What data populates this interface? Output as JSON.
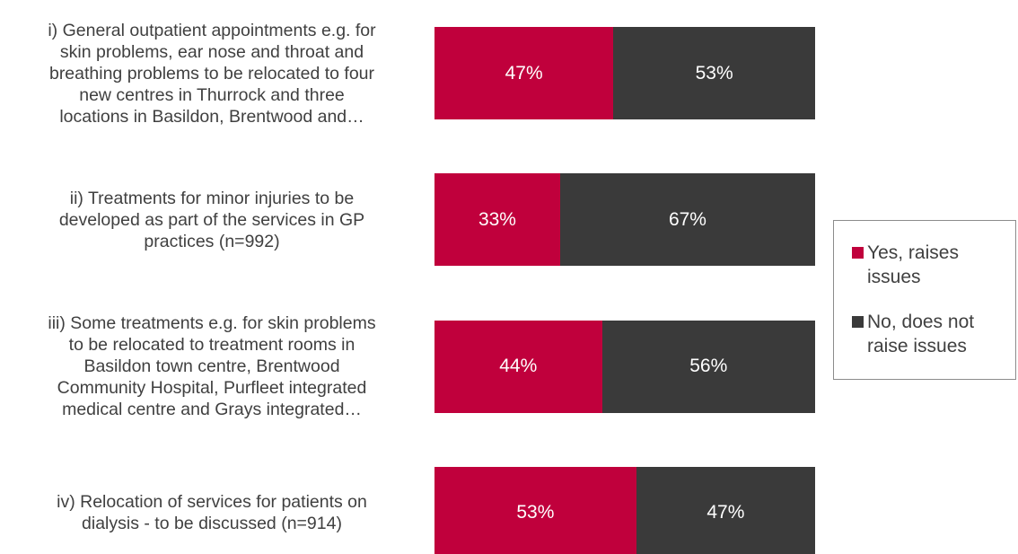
{
  "chart_data": {
    "type": "stacked_bar_horizontal",
    "categories": [
      "i) General outpatient appointments e.g. for\nskin problems, ear nose and throat and\nbreathing problems to be relocated to four\nnew centres in Thurrock and three\nlocations in Basildon, Brentwood and…",
      "ii) Treatments for minor injuries to be\ndeveloped as part of the services in GP\npractices (n=992)",
      "iii) Some treatments e.g. for skin problems\nto be relocated to treatment rooms in\nBasildon town centre, Brentwood\nCommunity Hospital, Purfleet integrated\nmedical centre and Grays integrated…",
      "iv) Relocation of services for patients on\ndialysis - to be discussed (n=914)"
    ],
    "series": [
      {
        "name": "Yes, raises issues",
        "color": "#c0003c",
        "values": [
          47,
          33,
          44,
          53
        ],
        "value_labels": [
          "47%",
          "33%",
          "44%",
          "53%"
        ]
      },
      {
        "name": "No, does not raise issues",
        "color": "#3a3a3a",
        "values": [
          53,
          67,
          56,
          47
        ],
        "value_labels": [
          "53%",
          "67%",
          "56%",
          "47%"
        ]
      }
    ],
    "xlim": [
      0,
      100
    ],
    "legend": "right"
  }
}
